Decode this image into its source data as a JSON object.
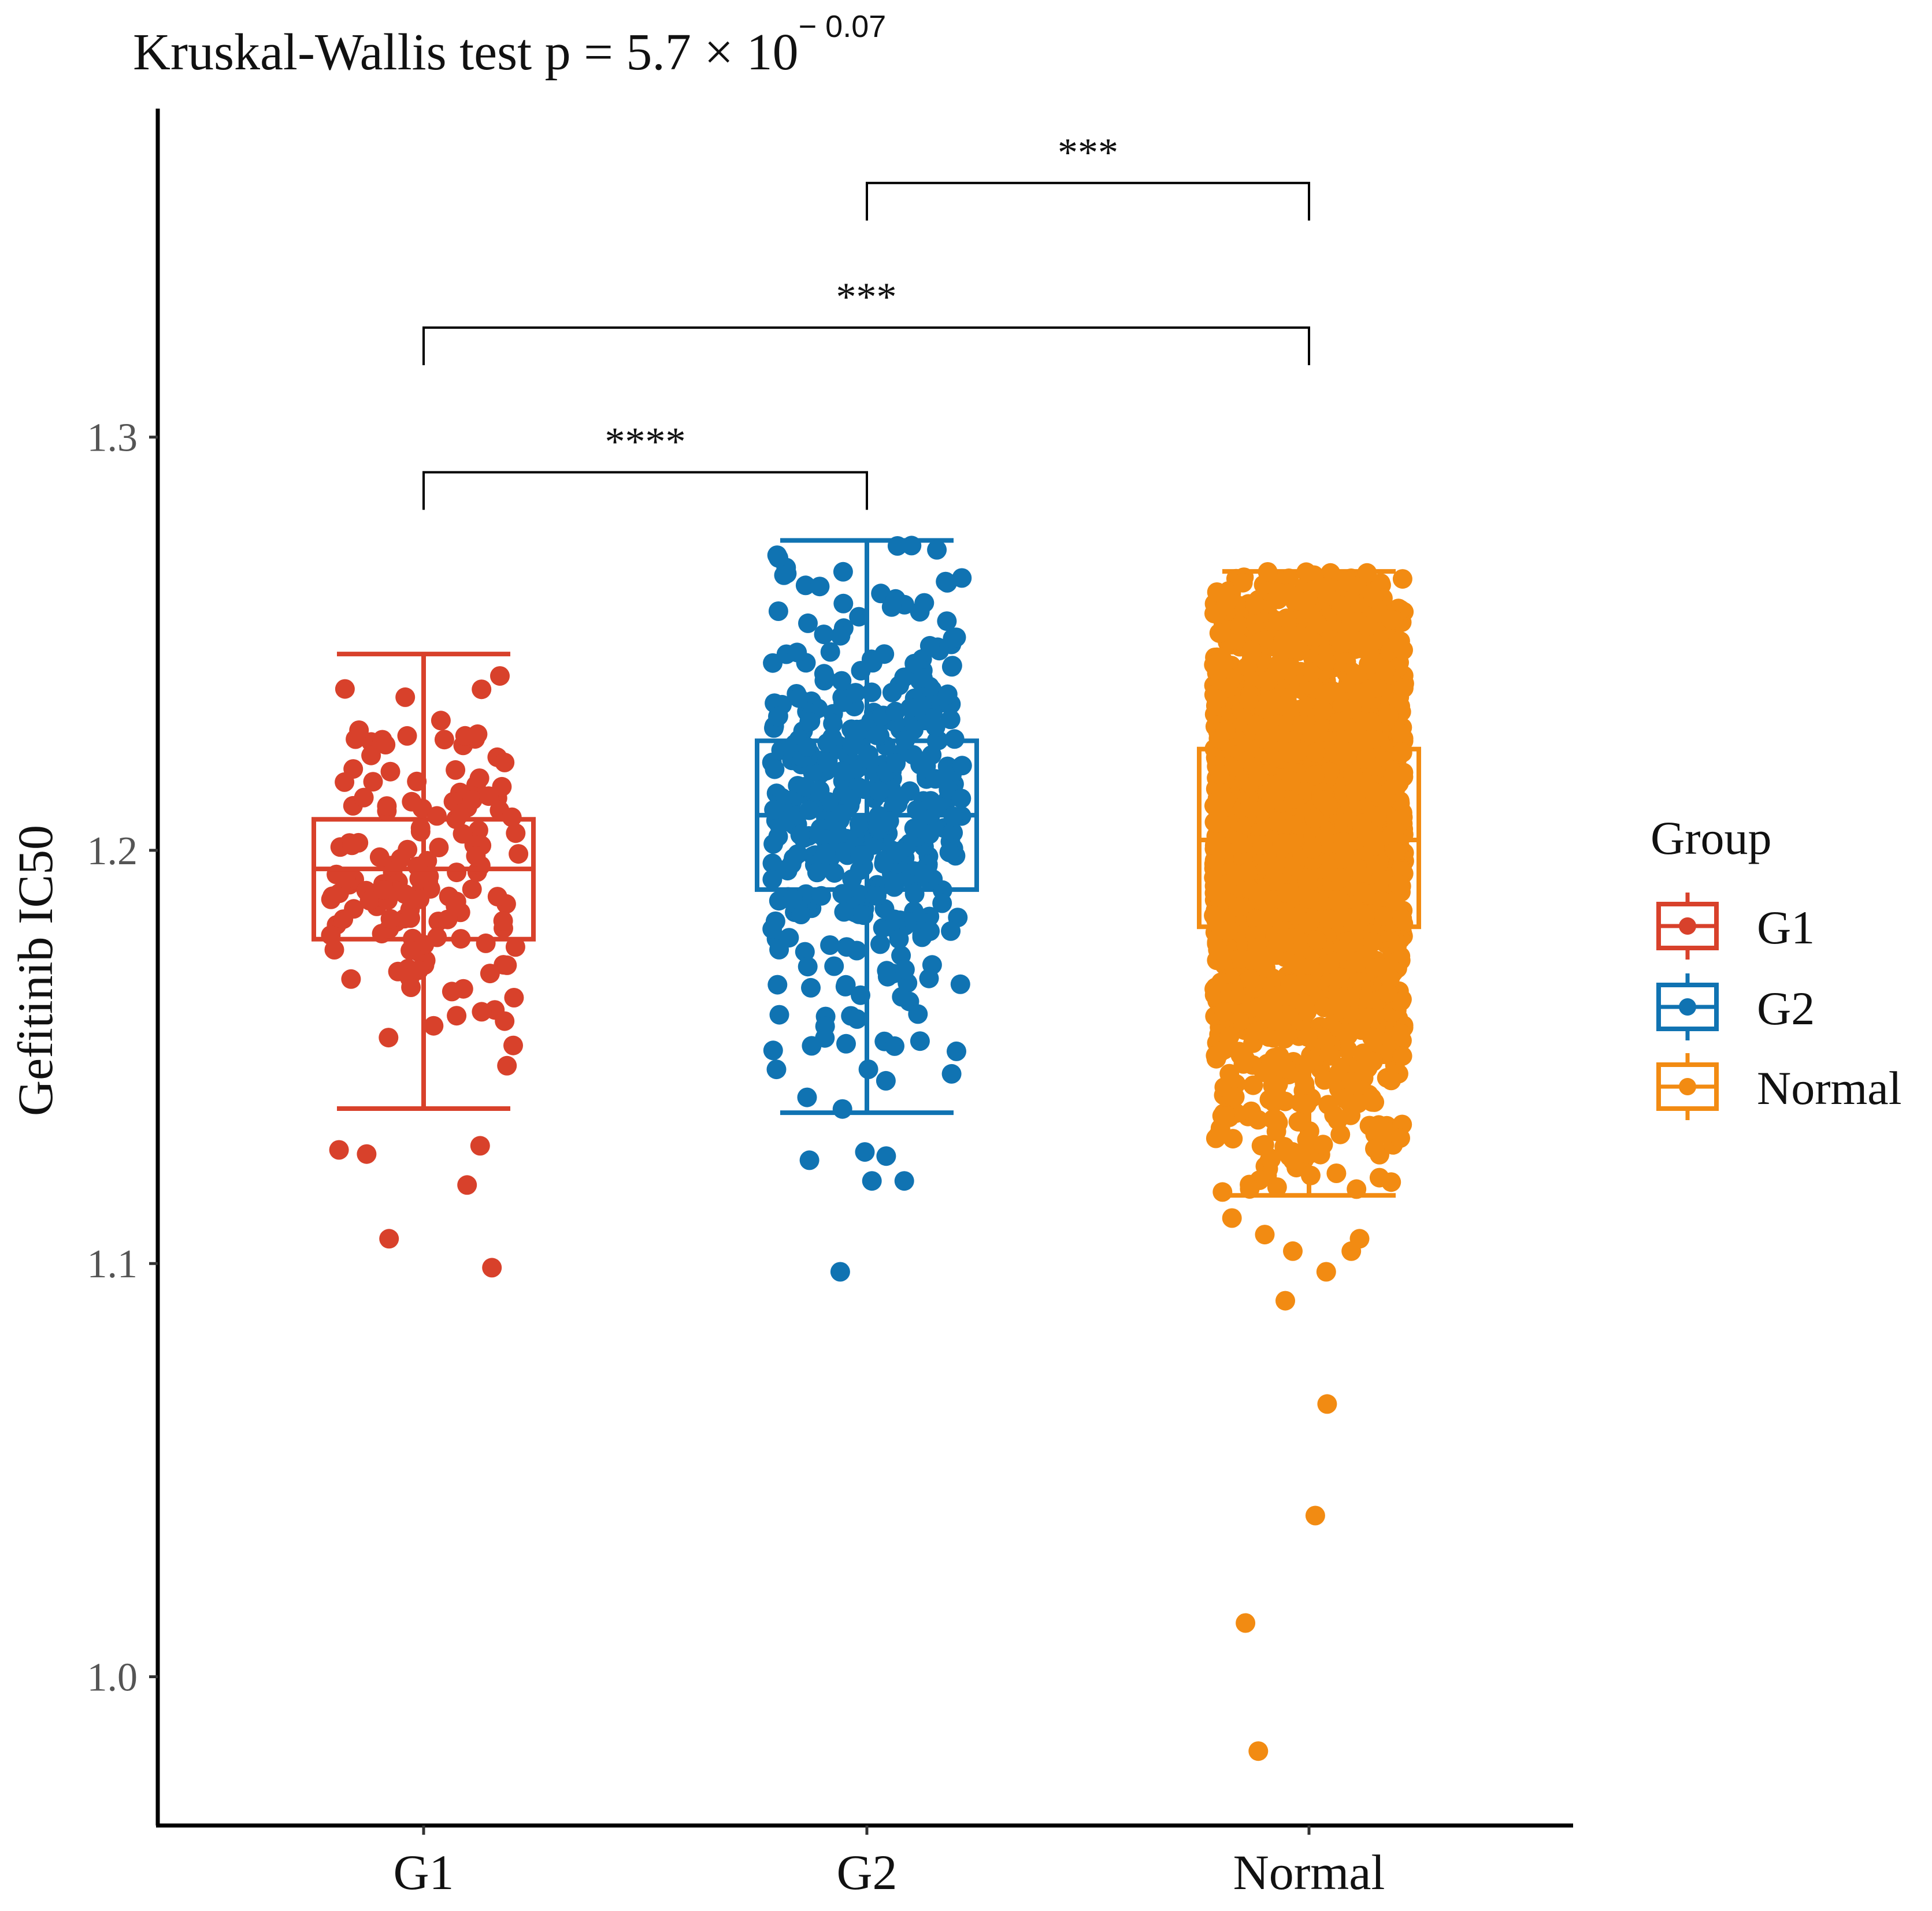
{
  "chart_data": {
    "type": "boxplot",
    "title": "Kruskal-Wallis test p = 5.7 × 10",
    "title_exponent": "− 0.07",
    "xlabel": "",
    "ylabel": "Gefitinib IC50",
    "ylim": [
      0.964,
      1.3795
    ],
    "yticks": [
      1.0,
      1.1,
      1.2,
      1.3
    ],
    "ytick_labels": [
      "1.0",
      "1.1",
      "1.2",
      "1.3"
    ],
    "categories": [
      "G1",
      "G2",
      "Normal"
    ],
    "colors": {
      "G1": "#d8412b",
      "G2": "#1073b2",
      "Normal": "#f28b12"
    },
    "boxes": [
      {
        "group": "G1",
        "whisker_low": 1.1375,
        "q1": 1.1785,
        "median": 1.1955,
        "q3": 1.2075,
        "whisker_high": 1.2475,
        "outliers": [
          1.1285,
          1.1265,
          1.1275,
          1.119,
          1.106,
          1.099
        ]
      },
      {
        "group": "G2",
        "whisker_low": 1.1365,
        "q1": 1.1905,
        "median": 1.2085,
        "q3": 1.2265,
        "whisker_high": 1.275,
        "outliers": [
          1.127,
          1.12,
          1.126,
          1.125,
          1.12,
          1.098
        ]
      },
      {
        "group": "Normal",
        "whisker_low": 1.1165,
        "q1": 1.1815,
        "median": 1.2025,
        "q3": 1.2245,
        "whisker_high": 1.2675,
        "outliers": [
          1.111,
          1.103,
          1.107,
          1.106,
          1.103,
          1.098,
          1.091,
          1.066,
          1.039,
          1.013,
          0.982
        ]
      }
    ],
    "significance": [
      {
        "from": "G2",
        "to": "Normal",
        "y": 1.3615,
        "label": "***"
      },
      {
        "from": "G1",
        "to": "Normal",
        "y": 1.3265,
        "label": "***"
      },
      {
        "from": "G1",
        "to": "G2",
        "y": 1.2915,
        "label": "****"
      }
    ],
    "legend": {
      "title": "Group",
      "position": "right",
      "items": [
        "G1",
        "G2",
        "Normal"
      ]
    },
    "grid": false
  }
}
